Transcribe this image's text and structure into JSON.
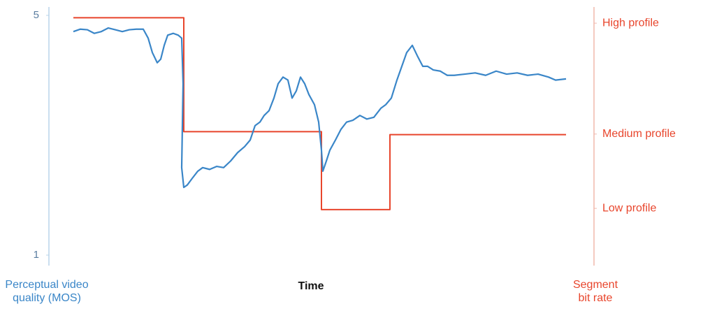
{
  "chart_data": {
    "type": "line",
    "xlabel": "Time",
    "ylabel": "Perceptual video quality (MOS)",
    "y2label": "Segment bit rate",
    "xlim": [
      0,
      780
    ],
    "ylim": [
      1,
      5
    ],
    "yticks": [
      1,
      5
    ],
    "y2lim": [
      0,
      4
    ],
    "y2ticks": [
      {
        "value": 3.87,
        "label": "High profile"
      },
      {
        "value": 2.02,
        "label": "Medium profile"
      },
      {
        "value": 0.78,
        "label": "Low profile"
      }
    ],
    "series": [
      {
        "color": "#3a86c8",
        "x": [
          35,
          45,
          55,
          65,
          75,
          85,
          95,
          105,
          115,
          125,
          135,
          142,
          148,
          155,
          160,
          165,
          170,
          178,
          185,
          190,
          192,
          190,
          193,
          198,
          205,
          213,
          220,
          230,
          240,
          250,
          260,
          270,
          280,
          288,
          295,
          302,
          308,
          315,
          322,
          328,
          335,
          342,
          348,
          354,
          360,
          366,
          372,
          380,
          386,
          390,
          392,
          397,
          402,
          410,
          418,
          426,
          435,
          445,
          455,
          465,
          475,
          482,
          490,
          498,
          505,
          512,
          520,
          527,
          535,
          542,
          550,
          560,
          570,
          580,
          595,
          610,
          625,
          640,
          655,
          670,
          685,
          700,
          715,
          725,
          740
        ],
        "values": [
          4.73,
          4.77,
          4.76,
          4.7,
          4.73,
          4.79,
          4.76,
          4.73,
          4.76,
          4.77,
          4.77,
          4.62,
          4.38,
          4.21,
          4.27,
          4.5,
          4.67,
          4.7,
          4.67,
          4.62,
          3.86,
          2.46,
          2.13,
          2.17,
          2.28,
          2.4,
          2.46,
          2.43,
          2.48,
          2.46,
          2.57,
          2.71,
          2.81,
          2.92,
          3.16,
          3.22,
          3.33,
          3.41,
          3.62,
          3.86,
          3.97,
          3.92,
          3.62,
          3.74,
          3.97,
          3.86,
          3.68,
          3.51,
          3.22,
          2.75,
          2.4,
          2.57,
          2.75,
          2.92,
          3.1,
          3.22,
          3.25,
          3.33,
          3.27,
          3.3,
          3.45,
          3.51,
          3.62,
          3.92,
          4.15,
          4.38,
          4.5,
          4.33,
          4.15,
          4.15,
          4.09,
          4.07,
          4.0,
          4.0,
          4.02,
          4.04,
          4.0,
          4.07,
          4.02,
          4.04,
          4.0,
          4.02,
          3.97,
          3.92,
          3.94
        ]
      },
      {
        "color": "#e8452c",
        "axis": "y2",
        "step": "post",
        "x": [
          35,
          193,
          390,
          488,
          740
        ],
        "values": [
          3.96,
          2.06,
          0.76,
          2.01,
          2.01
        ]
      }
    ]
  }
}
